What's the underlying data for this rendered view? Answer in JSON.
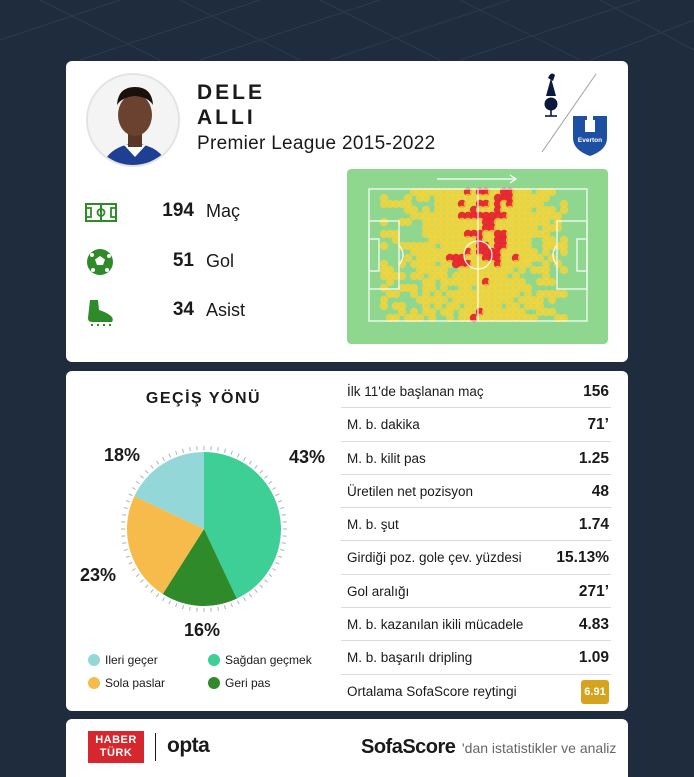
{
  "player": {
    "first_name": "DELE",
    "last_name": "ALLI",
    "league": "Premier League 2015-2022"
  },
  "clubs": [
    "spurs-crest-icon",
    "everton-crest-icon"
  ],
  "everton_text": "Everton",
  "stats": [
    {
      "icon": "pitch-icon",
      "value": "194",
      "label": "Maç"
    },
    {
      "icon": "football-icon",
      "value": "51",
      "label": "Gol"
    },
    {
      "icon": "boot-icon",
      "value": "34",
      "label": "Asist"
    }
  ],
  "pass_direction": {
    "title": "GEÇİŞ YÖNÜ",
    "slices": [
      {
        "name": "Sağdan geçmek",
        "percent": 43,
        "label": "43%",
        "color": "#3ecf96"
      },
      {
        "name": "Geri pas",
        "percent": 16,
        "label": "16%",
        "color": "#2f8a2a"
      },
      {
        "name": "Sola paslar",
        "percent": 23,
        "label": "23%",
        "color": "#f7bb4b"
      },
      {
        "name": "İleri geçer",
        "percent": 18,
        "label": "18%",
        "color": "#93d7d8"
      }
    ],
    "legend": [
      {
        "label": "Ileri geçer",
        "color": "#93d7d8"
      },
      {
        "label": "Sağdan geçmek",
        "color": "#3ecf96"
      },
      {
        "label": "Sola paslar",
        "color": "#f7bb4b"
      },
      {
        "label": "Geri pas",
        "color": "#2f8a2a"
      }
    ]
  },
  "table": [
    {
      "label": "İlk 11'de başlanan maç",
      "value": "156"
    },
    {
      "label": "M. b. dakika",
      "value": "71’"
    },
    {
      "label": "M. b. kilit pas",
      "value": "1.25"
    },
    {
      "label": "Üretilen net pozisyon",
      "value": "48"
    },
    {
      "label": "M. b. şut",
      "value": "1.74"
    },
    {
      "label": "Girdiği poz. gole çev. yüzdesi",
      "value": "15.13%"
    },
    {
      "label": "Gol aralığı",
      "value": "271’"
    },
    {
      "label": "M. b. kazanılan ikili mücadele",
      "value": "4.83"
    },
    {
      "label": "M. b. başarılı dripling",
      "value": "1.09"
    },
    {
      "label": "Ortalama SofaScore reytingi",
      "value": "6.91"
    }
  ],
  "footer": {
    "haberturk_line1": "HABER",
    "haberturk_line2": "TÜRK",
    "opta": "opta",
    "sofascore": "SofaScore",
    "sofascore_suffix": "'dan istatistikler ve analiz"
  },
  "colors": {
    "background": "#1e2c3d",
    "pitch": "#8fd78f",
    "heat_hot": "#e8262e",
    "heat_warm": "#f5d53a",
    "rating_badge": "#d6a31e"
  }
}
